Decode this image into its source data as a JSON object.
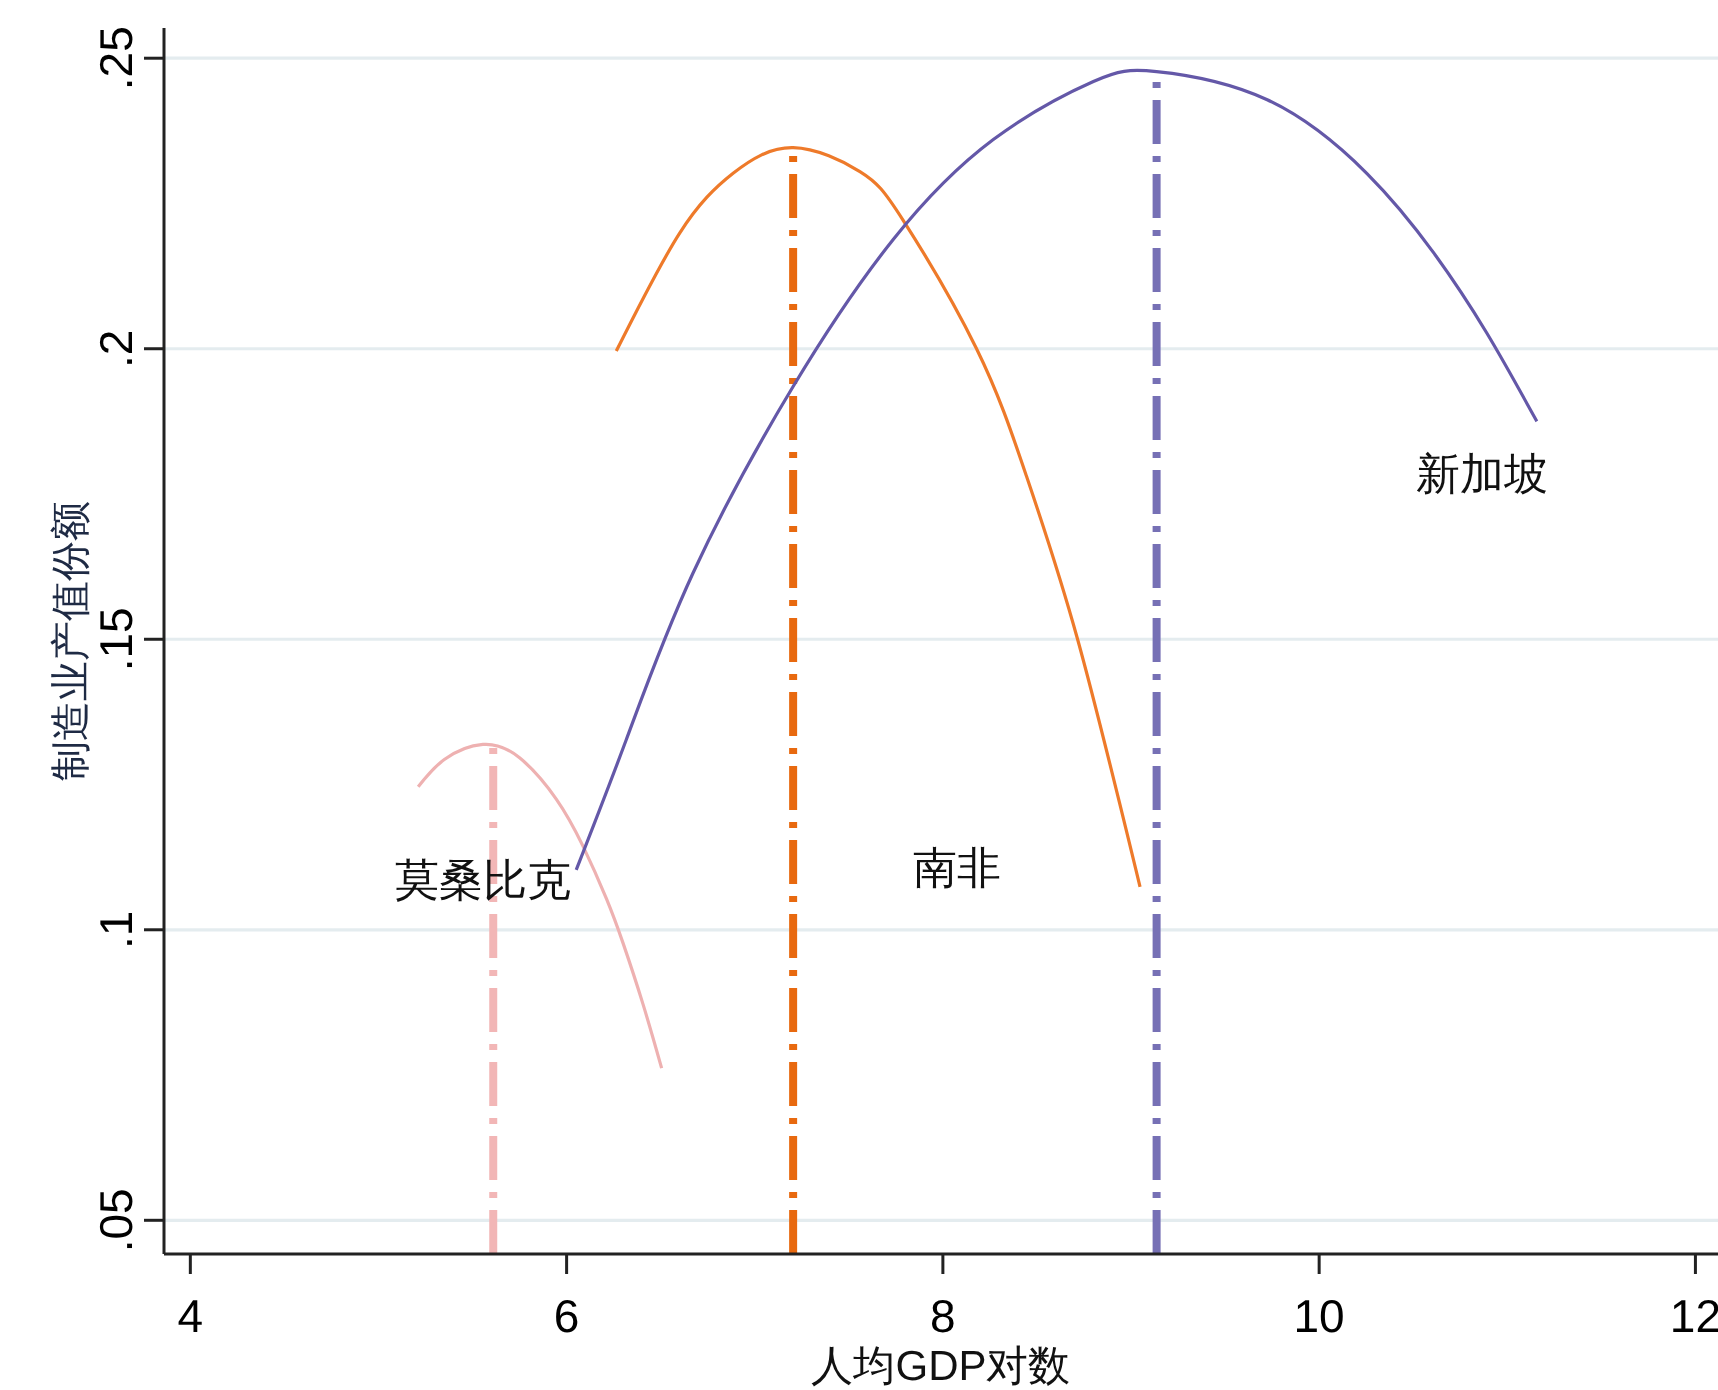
{
  "chart_data": {
    "type": "line",
    "xlabel": "人均GDP对数",
    "ylabel": "制造业产值份额",
    "xlim": [
      3.86,
      12.12
    ],
    "ylim": [
      0.0442,
      0.2552
    ],
    "xticks": [
      4,
      6,
      8,
      10,
      12
    ],
    "yticks": [
      {
        "value": 0.05,
        "label": ".05"
      },
      {
        "value": 0.1,
        "label": ".1"
      },
      {
        "value": 0.15,
        "label": ".15"
      },
      {
        "value": 0.2,
        "label": ".2"
      },
      {
        "value": 0.25,
        "label": ".25"
      }
    ],
    "grid": "y",
    "series": [
      {
        "color": "#eeb1b1",
        "x": [
          5.211,
          5.35,
          5.555,
          5.75,
          5.945,
          6.087,
          6.211,
          6.3,
          6.406,
          6.505
        ],
        "values": [
          0.1246,
          0.1293,
          0.1319,
          0.1296,
          0.1225,
          0.1144,
          0.1054,
          0.0977,
          0.0872,
          0.0762
        ]
      },
      {
        "color": "#ee7a2a",
        "x": [
          6.264,
          6.601,
          6.885,
          7.204,
          7.559,
          7.789,
          8.179,
          8.445,
          8.716,
          9.048
        ],
        "values": [
          0.1996,
          0.2199,
          0.2302,
          0.2346,
          0.2305,
          0.2221,
          0.2,
          0.178,
          0.15,
          0.1074
        ]
      },
      {
        "color": "#6458a8",
        "x": [
          6.051,
          6.317,
          6.672,
          7.204,
          7.736,
          8.268,
          8.8,
          9.136,
          9.721,
          10.253,
          10.609,
          10.891,
          11.157
        ],
        "values": [
          0.1103,
          0.1327,
          0.1614,
          0.1935,
          0.2188,
          0.236,
          0.246,
          0.2477,
          0.2429,
          0.2302,
          0.2165,
          0.2027,
          0.1875
        ]
      },
      {
        "color": "#f2b6b6",
        "line_style": "dashdot",
        "x": [
          5.61,
          5.61
        ],
        "values": [
          0.0442,
          0.1319
        ]
      },
      {
        "color": "#e8690f",
        "line_style": "dashdot",
        "x": [
          7.204,
          7.204
        ],
        "values": [
          0.0442,
          0.2346
        ]
      },
      {
        "color": "#7670b5",
        "line_style": "dashdot",
        "x": [
          9.136,
          9.136
        ],
        "values": [
          0.0442,
          0.2477
        ]
      }
    ],
    "annotations": [
      "莫桑比克",
      "南非",
      "新加坡"
    ]
  }
}
